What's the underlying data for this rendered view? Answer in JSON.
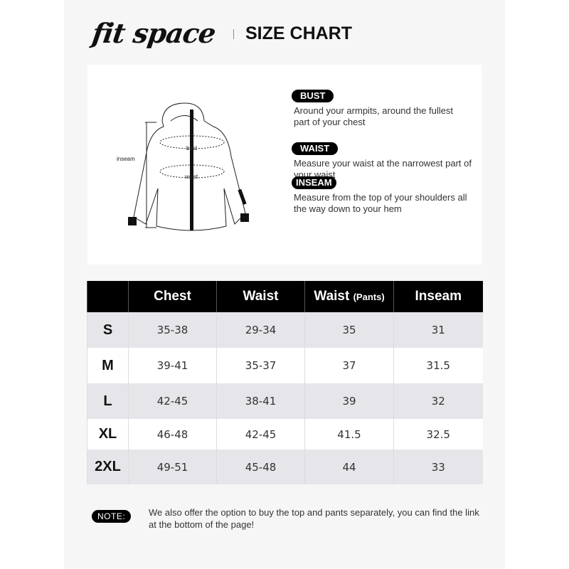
{
  "brand": {
    "logo": "fit space",
    "title": "SIZE CHART"
  },
  "diagram": {
    "labels": {
      "inseam": "inseam",
      "bust": "bust",
      "waist": "waist"
    }
  },
  "measures": [
    {
      "label": "BUST",
      "desc": "Around your armpits, around the fullest part of your chest"
    },
    {
      "label": "WAIST",
      "desc": "Measure your waist at the narrowest part of your waist"
    },
    {
      "label": "INSEAM",
      "desc": "Measure from the top of your shoulders all the way down to your hem"
    }
  ],
  "table": {
    "headers": [
      "",
      "Chest",
      "Waist",
      "Waist",
      "Inseam"
    ],
    "header_note": "(Pants)",
    "rows": [
      [
        "S",
        "35-38",
        "29-34",
        "35",
        "31"
      ],
      [
        "M",
        "39-41",
        "35-37",
        "37",
        "31.5"
      ],
      [
        "L",
        "42-45",
        "38-41",
        "39",
        "32"
      ],
      [
        "XL",
        "46-48",
        "42-45",
        "41.5",
        "32.5"
      ],
      [
        "2XL",
        "49-51",
        "45-48",
        "44",
        "33"
      ]
    ]
  },
  "note": {
    "label": "NOTE:",
    "text": "We also offer the option to buy the top and pants separately, you can find the link at the bottom of the page!"
  },
  "colors": {
    "header_bg": "#000000",
    "row_alt": "#e5e5ea",
    "panel": "#f6f6f6"
  }
}
